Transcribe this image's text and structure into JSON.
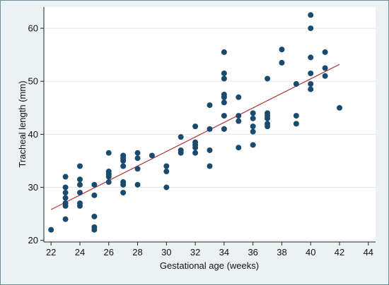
{
  "chart_data": {
    "type": "scatter",
    "title": "",
    "xlabel": "Gestational age (weeks)",
    "ylabel": "Tracheal length (mm)",
    "xlim": [
      21.5,
      44.5
    ],
    "ylim": [
      19.7,
      64.0
    ],
    "xticks": [
      22,
      24,
      26,
      28,
      30,
      32,
      34,
      36,
      38,
      40,
      42,
      44
    ],
    "yticks": [
      20,
      30,
      40,
      50,
      60
    ],
    "grid": true,
    "legend": "none",
    "colors": {
      "figure_background": "#eaf2f3",
      "plot_background": "#ffffff",
      "points": "#1a4a6e",
      "fit_line": "#b5342f",
      "grid": "#e3e8ea",
      "axis": "#222222"
    },
    "series": [
      {
        "type": "scatter",
        "points": [
          [
            22,
            22.0
          ],
          [
            23,
            32.0
          ],
          [
            23,
            30.0
          ],
          [
            23,
            29.0
          ],
          [
            23,
            28.0
          ],
          [
            23,
            27.0
          ],
          [
            23,
            26.5
          ],
          [
            23,
            24.0
          ],
          [
            24,
            34.0
          ],
          [
            24,
            31.5
          ],
          [
            24,
            30.5
          ],
          [
            24,
            29.0
          ],
          [
            24,
            27.0
          ],
          [
            24,
            26.5
          ],
          [
            25,
            30.5
          ],
          [
            25,
            28.5
          ],
          [
            25,
            24.5
          ],
          [
            25,
            22.5
          ],
          [
            25,
            22.0
          ],
          [
            26,
            36.5
          ],
          [
            26,
            33.0
          ],
          [
            26,
            32.5
          ],
          [
            26,
            32.0
          ],
          [
            26,
            31.0
          ],
          [
            27,
            36.0
          ],
          [
            27,
            35.5
          ],
          [
            27,
            35.0
          ],
          [
            27,
            34.0
          ],
          [
            27,
            31.0
          ],
          [
            27,
            30.5
          ],
          [
            27,
            29.0
          ],
          [
            28,
            36.5
          ],
          [
            28,
            35.5
          ],
          [
            28,
            33.5
          ],
          [
            28,
            30.5
          ],
          [
            29,
            36.0
          ],
          [
            30,
            34.0
          ],
          [
            30,
            33.0
          ],
          [
            30,
            30.0
          ],
          [
            31,
            39.5
          ],
          [
            31,
            37.0
          ],
          [
            31,
            36.5
          ],
          [
            32,
            41.5
          ],
          [
            32,
            38.5
          ],
          [
            32,
            38.0
          ],
          [
            32,
            37.5
          ],
          [
            32,
            36.5
          ],
          [
            33,
            45.5
          ],
          [
            33,
            41.0
          ],
          [
            33,
            37.0
          ],
          [
            33,
            34.0
          ],
          [
            34,
            55.5
          ],
          [
            34,
            51.5
          ],
          [
            34,
            50.5
          ],
          [
            34,
            47.5
          ],
          [
            34,
            47.0
          ],
          [
            34,
            46.0
          ],
          [
            34,
            43.5
          ],
          [
            34,
            41.0
          ],
          [
            35,
            47.0
          ],
          [
            35,
            43.5
          ],
          [
            35,
            42.5
          ],
          [
            35,
            37.5
          ],
          [
            36,
            44.0
          ],
          [
            36,
            43.0
          ],
          [
            36,
            41.5
          ],
          [
            36,
            40.5
          ],
          [
            36,
            38.0
          ],
          [
            37,
            50.5
          ],
          [
            37,
            44.0
          ],
          [
            37,
            43.5
          ],
          [
            37,
            43.0
          ],
          [
            37,
            42.0
          ],
          [
            37,
            41.5
          ],
          [
            38,
            56.0
          ],
          [
            38,
            53.5
          ],
          [
            39,
            49.5
          ],
          [
            39,
            43.5
          ],
          [
            39,
            42.0
          ],
          [
            40,
            62.5
          ],
          [
            40,
            60.0
          ],
          [
            40,
            54.5
          ],
          [
            40,
            51.5
          ],
          [
            40,
            49.5
          ],
          [
            40,
            48.5
          ],
          [
            41,
            55.5
          ],
          [
            41,
            52.5
          ],
          [
            41,
            51.0
          ],
          [
            42,
            45.0
          ]
        ]
      },
      {
        "type": "line",
        "points": [
          [
            22,
            25.8
          ],
          [
            42,
            53.2
          ]
        ]
      }
    ]
  }
}
